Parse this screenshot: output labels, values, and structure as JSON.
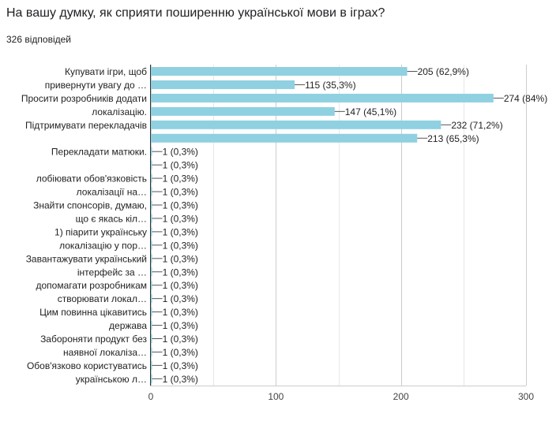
{
  "header": {
    "question": "На вашу думку, як сприяти поширенню української мови в іграх?",
    "responses": "326 відповідей"
  },
  "chart_data": {
    "type": "bar",
    "orientation": "horizontal",
    "bar_color": "#8fd0e1",
    "xlim": [
      0,
      300
    ],
    "xticks": [
      0,
      100,
      200,
      300
    ],
    "grid": true,
    "categories": [
      {
        "lines": [
          "Купувати ігри, щоб",
          "привернути увагу до …"
        ],
        "value": 205,
        "label": "205 (62,9%)"
      },
      {
        "lines": [],
        "value": 115,
        "label": "115 (35,3%)"
      },
      {
        "lines": [
          "Просити розробників додати",
          "локалізацію."
        ],
        "value": 274,
        "label": "274 (84%)"
      },
      {
        "lines": [],
        "value": 147,
        "label": "147 (45,1%)"
      },
      {
        "lines": [
          "Підтримувати перекладачів"
        ],
        "value": 232,
        "label": "232 (71,2%)"
      },
      {
        "lines": [],
        "value": 213,
        "label": "213 (65,3%)"
      },
      {
        "lines": [
          "Перекладати матюки."
        ],
        "value": 1,
        "label": "1 (0,3%)"
      },
      {
        "lines": [],
        "value": 1,
        "label": "1 (0,3%)"
      },
      {
        "lines": [
          "лобіювати обов'язковість",
          "локалізації на…"
        ],
        "value": 1,
        "label": "1 (0,3%)"
      },
      {
        "lines": [],
        "value": 1,
        "label": "1 (0,3%)"
      },
      {
        "lines": [
          "Знайти спонсорів, думаю,",
          "що є якась кіл…"
        ],
        "value": 1,
        "label": "1 (0,3%)"
      },
      {
        "lines": [],
        "value": 1,
        "label": "1 (0,3%)"
      },
      {
        "lines": [
          "1) піарити українську",
          "локалізацію у пор…"
        ],
        "value": 1,
        "label": "1 (0,3%)"
      },
      {
        "lines": [],
        "value": 1,
        "label": "1 (0,3%)"
      },
      {
        "lines": [
          "Завантажувати український",
          "інтерфейс за …"
        ],
        "value": 1,
        "label": "1 (0,3%)"
      },
      {
        "lines": [],
        "value": 1,
        "label": "1 (0,3%)"
      },
      {
        "lines": [
          "допомагати розробникам",
          "створювати локал…"
        ],
        "value": 1,
        "label": "1 (0,3%)"
      },
      {
        "lines": [],
        "value": 1,
        "label": "1 (0,3%)"
      },
      {
        "lines": [
          "Цим повинна цікавитись",
          "держава"
        ],
        "value": 1,
        "label": "1 (0,3%)"
      },
      {
        "lines": [],
        "value": 1,
        "label": "1 (0,3%)"
      },
      {
        "lines": [
          "Забороняти продукт без",
          "наявної локаліза…"
        ],
        "value": 1,
        "label": "1 (0,3%)"
      },
      {
        "lines": [],
        "value": 1,
        "label": "1 (0,3%)"
      },
      {
        "lines": [
          "Обов'язково користуватись",
          "українською л…"
        ],
        "value": 1,
        "label": "1 (0,3%)"
      },
      {
        "lines": [],
        "value": 1,
        "label": "1 (0,3%)"
      }
    ]
  }
}
